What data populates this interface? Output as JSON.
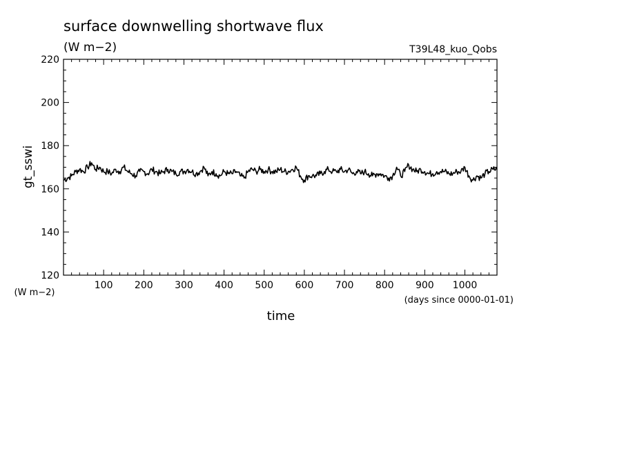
{
  "chart_data": {
    "type": "line",
    "title": "surface downwelling shortwave flux",
    "title_units": "(W m−2)",
    "run_label": "T39L48_kuo_Qobs",
    "xlabel": "time",
    "xunits": "(days since 0000-01-01)",
    "ylabel": "gt_sswi",
    "yunits": "(W m−2)",
    "xlim": [
      0,
      1080
    ],
    "ylim": [
      120,
      220
    ],
    "xticks": [
      100,
      200,
      300,
      400,
      500,
      600,
      700,
      800,
      900,
      1000
    ],
    "xtick_labels": [
      "100",
      "200",
      "300",
      "400",
      "500",
      "600",
      "700",
      "800",
      "900",
      "1000"
    ],
    "yticks": [
      120,
      140,
      160,
      180,
      200,
      220
    ],
    "ytick_labels": [
      "120",
      "140",
      "160",
      "180",
      "200",
      "220"
    ],
    "grid": false,
    "legend": "none",
    "series": [
      {
        "color": "#000000",
        "x": [
          0,
          10,
          20,
          30,
          40,
          50,
          60,
          70,
          80,
          90,
          100,
          110,
          120,
          130,
          140,
          150,
          160,
          170,
          180,
          190,
          200,
          210,
          220,
          230,
          240,
          250,
          260,
          270,
          280,
          290,
          300,
          310,
          320,
          330,
          340,
          350,
          360,
          370,
          380,
          390,
          400,
          410,
          420,
          430,
          440,
          450,
          460,
          470,
          480,
          490,
          500,
          510,
          520,
          530,
          540,
          550,
          560,
          570,
          580,
          590,
          600,
          610,
          620,
          630,
          640,
          650,
          660,
          670,
          680,
          690,
          700,
          710,
          720,
          730,
          740,
          750,
          760,
          770,
          780,
          790,
          800,
          810,
          820,
          830,
          840,
          850,
          860,
          870,
          880,
          890,
          900,
          910,
          920,
          930,
          940,
          950,
          960,
          970,
          980,
          990,
          1000,
          1010,
          1020,
          1030,
          1040,
          1050,
          1060,
          1070,
          1080
        ],
        "y": [
          164,
          165,
          166,
          168,
          169,
          168,
          170,
          172,
          169,
          170,
          168,
          168,
          167,
          169,
          168,
          170,
          168,
          167,
          166,
          168,
          168,
          167,
          169,
          168,
          167,
          168,
          169,
          168,
          167,
          168,
          168,
          169,
          168,
          167,
          168,
          170,
          166,
          168,
          167,
          166,
          168,
          167,
          167,
          168,
          166,
          165,
          168,
          169,
          168,
          169,
          168,
          169,
          168,
          168,
          169,
          168,
          168,
          169,
          170,
          166,
          164,
          166,
          166,
          166,
          167,
          168,
          169,
          168,
          168,
          169,
          168,
          169,
          167,
          168,
          167,
          168,
          167,
          166,
          167,
          167,
          166,
          165,
          166,
          170,
          166,
          168,
          171,
          169,
          168,
          169,
          168,
          167,
          167,
          168,
          168,
          168,
          167,
          167,
          168,
          168,
          170,
          166,
          164,
          166,
          165,
          167,
          168,
          169,
          169
        ]
      }
    ]
  }
}
